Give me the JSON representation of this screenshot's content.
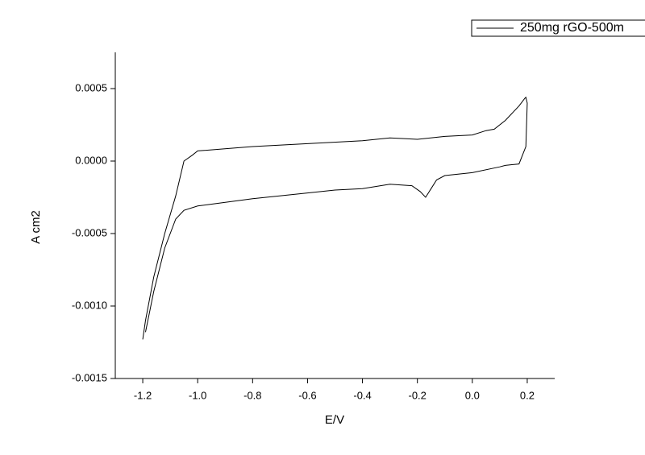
{
  "chart_data": {
    "type": "line",
    "x_label": "E/V",
    "y_label": "A cm2",
    "xlim": [
      -1.3,
      0.3
    ],
    "ylim": [
      -0.0015,
      0.00075
    ],
    "xticks": [
      -1.2,
      {
        "value": -1.0,
        "label": "-1.0"
      },
      -0.8,
      -0.6,
      -0.4,
      -0.2,
      {
        "value": 0.0,
        "label": "0.0"
      },
      0.2
    ],
    "yticks": [
      -0.0015,
      {
        "value": -0.001,
        "label": "-0.0010"
      },
      -0.0005,
      {
        "value": 0.0,
        "label": "0.0000"
      },
      0.0005
    ],
    "legend": "top-right",
    "series": [
      {
        "name": "250mg rGO-500m",
        "color": "#000000",
        "x": [
          -1.2,
          -1.19,
          -1.16,
          -1.12,
          -1.08,
          -1.05,
          -1.02,
          -1.0,
          -0.8,
          -0.6,
          -0.4,
          -0.3,
          -0.2,
          -0.1,
          0.0,
          0.05,
          0.08,
          0.12,
          0.17,
          0.19,
          0.195,
          0.2,
          0.195,
          0.17,
          0.12,
          0.1,
          0.0,
          -0.1,
          -0.13,
          -0.15,
          -0.17,
          -0.19,
          -0.22,
          -0.3,
          -0.4,
          -0.5,
          -0.6,
          -0.8,
          -1.0,
          -1.05,
          -1.08,
          -1.12,
          -1.16,
          -1.19
        ],
        "values": [
          -0.00123,
          -0.0011,
          -0.0008,
          -0.0005,
          -0.00024,
          0.0,
          4e-05,
          7e-05,
          0.0001,
          0.00012,
          0.00014,
          0.00016,
          0.00015,
          0.00017,
          0.00018,
          0.00021,
          0.00022,
          0.00028,
          0.00038,
          0.00043,
          0.00044,
          0.0004,
          0.0001,
          -2e-05,
          -3e-05,
          -4e-05,
          -8e-05,
          -0.0001,
          -0.00013,
          -0.00019,
          -0.00025,
          -0.00021,
          -0.00017,
          -0.00016,
          -0.00019,
          -0.0002,
          -0.00022,
          -0.00026,
          -0.00031,
          -0.00034,
          -0.0004,
          -0.0006,
          -0.0009,
          -0.00118
        ]
      }
    ]
  }
}
